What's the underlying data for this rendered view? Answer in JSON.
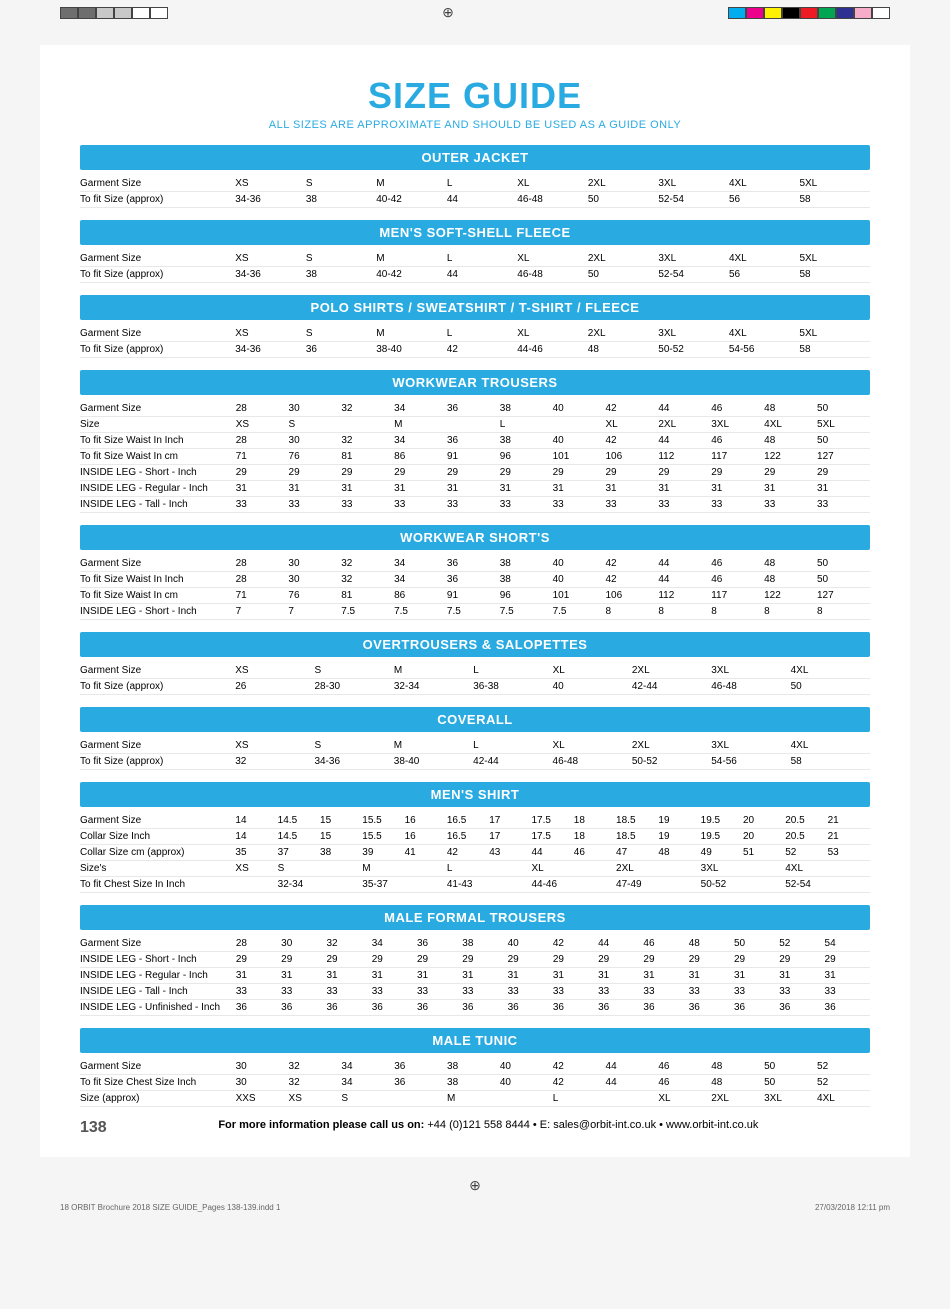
{
  "title": "SIZE GUIDE",
  "subtitle": "ALL SIZES ARE APPROXIMATE AND SHOULD BE USED AS A GUIDE ONLY",
  "page_number": "138",
  "footer_leadin": "For more information please call us on:",
  "footer_contact": "+44 (0)121 558 8444 • E: sales@orbit-int.co.uk • www.orbit-int.co.uk",
  "print_file": "18 ORBIT Brochure 2018 SIZE GUIDE_Pages 138-139.indd   1",
  "print_date": "27/03/2018   12:11 pm",
  "colors": {
    "accent": "#29abe2",
    "print_left": [
      "#6e6e6e",
      "#6e6e6e",
      "#c8c8c8",
      "#c8c8c8",
      "#ffffff",
      "#ffffff"
    ],
    "print_right": [
      "#00aeef",
      "#ec008c",
      "#fff200",
      "#000000",
      "#ed1c24",
      "#00a651",
      "#2e3192",
      "#f7adc9",
      "#ffffff"
    ]
  },
  "sections": [
    {
      "header": "OUTER JACKET",
      "cols": 9,
      "rows": [
        {
          "label": "Garment Size",
          "v": [
            "XS",
            "S",
            "M",
            "L",
            "XL",
            "2XL",
            "3XL",
            "4XL",
            "5XL"
          ]
        },
        {
          "label": "To fit Size (approx)",
          "v": [
            "34-36",
            "38",
            "40-42",
            "44",
            "46-48",
            "50",
            "52-54",
            "56",
            "58"
          ]
        }
      ]
    },
    {
      "header": "MEN'S SOFT-SHELL FLEECE",
      "cols": 9,
      "rows": [
        {
          "label": "Garment Size",
          "v": [
            "XS",
            "S",
            "M",
            "L",
            "XL",
            "2XL",
            "3XL",
            "4XL",
            "5XL"
          ]
        },
        {
          "label": "To fit Size (approx)",
          "v": [
            "34-36",
            "38",
            "40-42",
            "44",
            "46-48",
            "50",
            "52-54",
            "56",
            "58"
          ]
        }
      ]
    },
    {
      "header": "POLO SHIRTS / SWEATSHIRT / T-SHIRT / FLEECE",
      "cols": 9,
      "rows": [
        {
          "label": "Garment Size",
          "v": [
            "XS",
            "S",
            "M",
            "L",
            "XL",
            "2XL",
            "3XL",
            "4XL",
            "5XL"
          ]
        },
        {
          "label": "To fit Size (approx)",
          "v": [
            "34-36",
            "36",
            "38-40",
            "42",
            "44-46",
            "48",
            "50-52",
            "54-56",
            "58"
          ]
        }
      ]
    },
    {
      "header": "WORKWEAR TROUSERS",
      "cols": 12,
      "rows": [
        {
          "label": "Garment Size",
          "v": [
            "28",
            "30",
            "32",
            "34",
            "36",
            "38",
            "40",
            "42",
            "44",
            "46",
            "48",
            "50"
          ]
        },
        {
          "label": "Size",
          "v": [
            "XS",
            "S",
            "",
            "M",
            "",
            "L",
            "",
            "XL",
            "2XL",
            "3XL",
            "4XL",
            "5XL"
          ],
          "spans": [
            1,
            2,
            0,
            2,
            0,
            2,
            0,
            1,
            1,
            1,
            1,
            1
          ]
        },
        {
          "label": "To fit Size Waist In Inch",
          "v": [
            "28",
            "30",
            "32",
            "34",
            "36",
            "38",
            "40",
            "42",
            "44",
            "46",
            "48",
            "50"
          ]
        },
        {
          "label": "To fit Size Waist In cm",
          "v": [
            "71",
            "76",
            "81",
            "86",
            "91",
            "96",
            "101",
            "106",
            "112",
            "117",
            "122",
            "127"
          ]
        },
        {
          "label": "INSIDE LEG - Short - Inch",
          "v": [
            "29",
            "29",
            "29",
            "29",
            "29",
            "29",
            "29",
            "29",
            "29",
            "29",
            "29",
            "29"
          ]
        },
        {
          "label": "INSIDE LEG - Regular - Inch",
          "v": [
            "31",
            "31",
            "31",
            "31",
            "31",
            "31",
            "31",
            "31",
            "31",
            "31",
            "31",
            "31"
          ]
        },
        {
          "label": "INSIDE LEG - Tall - Inch",
          "v": [
            "33",
            "33",
            "33",
            "33",
            "33",
            "33",
            "33",
            "33",
            "33",
            "33",
            "33",
            "33"
          ]
        }
      ]
    },
    {
      "header": "WORKWEAR SHORT'S",
      "cols": 12,
      "rows": [
        {
          "label": "Garment Size",
          "v": [
            "28",
            "30",
            "32",
            "34",
            "36",
            "38",
            "40",
            "42",
            "44",
            "46",
            "48",
            "50"
          ]
        },
        {
          "label": "To fit Size Waist In Inch",
          "v": [
            "28",
            "30",
            "32",
            "34",
            "36",
            "38",
            "40",
            "42",
            "44",
            "46",
            "48",
            "50"
          ]
        },
        {
          "label": "To fit Size Waist In cm",
          "v": [
            "71",
            "76",
            "81",
            "86",
            "91",
            "96",
            "101",
            "106",
            "112",
            "117",
            "122",
            "127"
          ]
        },
        {
          "label": "INSIDE LEG - Short - Inch",
          "v": [
            "7",
            "7",
            "7.5",
            "7.5",
            "7.5",
            "7.5",
            "7.5",
            "8",
            "8",
            "8",
            "8",
            "8"
          ]
        }
      ]
    },
    {
      "header": "OVERTROUSERS & SALOPETTES",
      "cols": 8,
      "rows": [
        {
          "label": "Garment Size",
          "v": [
            "XS",
            "S",
            "M",
            "L",
            "XL",
            "2XL",
            "3XL",
            "4XL"
          ]
        },
        {
          "label": "To fit Size (approx)",
          "v": [
            "26",
            "28-30",
            "32-34",
            "36-38",
            "40",
            "42-44",
            "46-48",
            "50"
          ]
        }
      ]
    },
    {
      "header": "COVERALL",
      "cols": 8,
      "rows": [
        {
          "label": "Garment Size",
          "v": [
            "XS",
            "S",
            "M",
            "L",
            "XL",
            "2XL",
            "3XL",
            "4XL"
          ]
        },
        {
          "label": "To fit Size (approx)",
          "v": [
            "32",
            "34-36",
            "38-40",
            "42-44",
            "46-48",
            "50-52",
            "54-56",
            "58"
          ]
        }
      ]
    },
    {
      "header": "MEN'S SHIRT",
      "cols": 15,
      "rows": [
        {
          "label": "Garment Size",
          "v": [
            "14",
            "14.5",
            "15",
            "15.5",
            "16",
            "16.5",
            "17",
            "17.5",
            "18",
            "18.5",
            "19",
            "19.5",
            "20",
            "20.5",
            "21"
          ]
        },
        {
          "label": "Collar Size Inch",
          "v": [
            "14",
            "14.5",
            "15",
            "15.5",
            "16",
            "16.5",
            "17",
            "17.5",
            "18",
            "18.5",
            "19",
            "19.5",
            "20",
            "20.5",
            "21"
          ]
        },
        {
          "label": "Collar Size cm (approx)",
          "v": [
            "35",
            "37",
            "38",
            "39",
            "41",
            "42",
            "43",
            "44",
            "46",
            "47",
            "48",
            "49",
            "51",
            "52",
            "53"
          ]
        },
        {
          "label": "Size's",
          "v": [
            "XS",
            "S",
            "",
            "M",
            "",
            "L",
            "",
            "XL",
            "",
            "2XL",
            "",
            "3XL",
            "",
            "4XL",
            ""
          ],
          "spans": [
            1,
            2,
            0,
            2,
            0,
            2,
            0,
            2,
            0,
            2,
            0,
            2,
            0,
            2,
            0
          ]
        },
        {
          "label": "To fit Chest Size  In Inch",
          "v": [
            "",
            "32-34",
            "",
            "35-37",
            "",
            "41-43",
            "",
            "44-46",
            "",
            "47-49",
            "",
            "50-52",
            "",
            "52-54",
            ""
          ],
          "spans": [
            1,
            2,
            0,
            2,
            0,
            2,
            0,
            2,
            0,
            2,
            0,
            2,
            0,
            2,
            0
          ]
        }
      ]
    },
    {
      "header": "MALE FORMAL TROUSERS",
      "cols": 14,
      "rows": [
        {
          "label": "Garment Size",
          "v": [
            "28",
            "30",
            "32",
            "34",
            "36",
            "38",
            "40",
            "42",
            "44",
            "46",
            "48",
            "50",
            "52",
            "54"
          ]
        },
        {
          "label": "INSIDE LEG - Short - Inch",
          "v": [
            "29",
            "29",
            "29",
            "29",
            "29",
            "29",
            "29",
            "29",
            "29",
            "29",
            "29",
            "29",
            "29",
            "29"
          ]
        },
        {
          "label": "INSIDE LEG - Regular - Inch",
          "v": [
            "31",
            "31",
            "31",
            "31",
            "31",
            "31",
            "31",
            "31",
            "31",
            "31",
            "31",
            "31",
            "31",
            "31"
          ]
        },
        {
          "label": "INSIDE LEG - Tall - Inch",
          "v": [
            "33",
            "33",
            "33",
            "33",
            "33",
            "33",
            "33",
            "33",
            "33",
            "33",
            "33",
            "33",
            "33",
            "33"
          ]
        },
        {
          "label": "INSIDE LEG - Unfinished - Inch",
          "v": [
            "36",
            "36",
            "36",
            "36",
            "36",
            "36",
            "36",
            "36",
            "36",
            "36",
            "36",
            "36",
            "36",
            "36"
          ]
        }
      ]
    },
    {
      "header": "MALE TUNIC",
      "cols": 12,
      "rows": [
        {
          "label": "Garment Size",
          "v": [
            "30",
            "32",
            "34",
            "36",
            "38",
            "40",
            "42",
            "44",
            "46",
            "48",
            "50",
            "52"
          ]
        },
        {
          "label": "To fit Size Chest Size Inch",
          "v": [
            "30",
            "32",
            "34",
            "36",
            "38",
            "40",
            "42",
            "44",
            "46",
            "48",
            "50",
            "52"
          ]
        },
        {
          "label": "Size (approx)",
          "v": [
            "XXS",
            "XS",
            "S",
            "",
            "M",
            "",
            "L",
            "",
            "XL",
            "2XL",
            "3XL",
            "4XL"
          ],
          "spans": [
            1,
            1,
            2,
            0,
            2,
            0,
            2,
            0,
            1,
            1,
            1,
            1
          ]
        }
      ]
    }
  ]
}
